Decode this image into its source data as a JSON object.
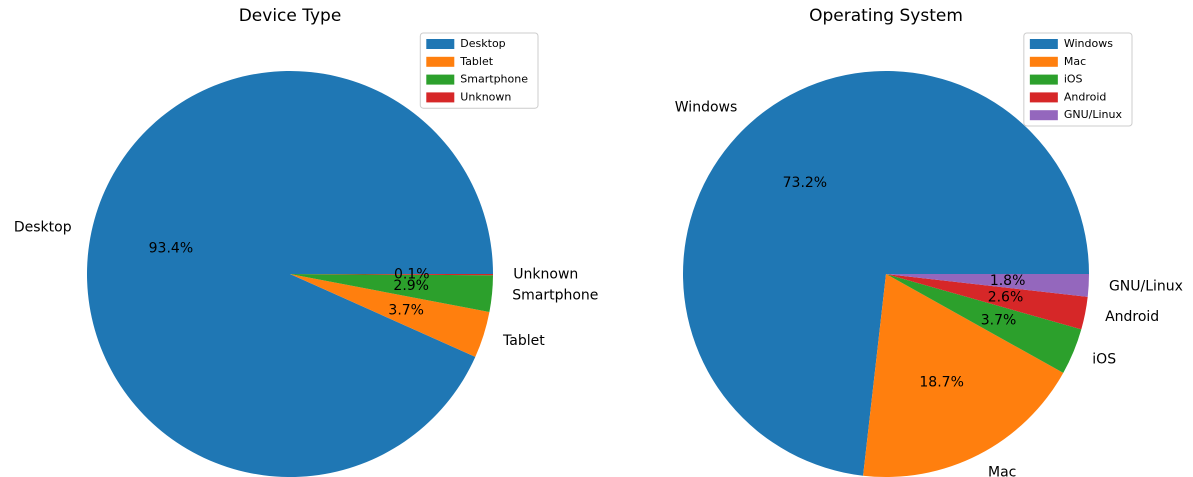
{
  "chart_data": [
    {
      "type": "pie",
      "title": "Device Type",
      "categories": [
        "Desktop",
        "Tablet",
        "Smartphone",
        "Unknown"
      ],
      "values": [
        93.4,
        3.7,
        2.9,
        0.1
      ],
      "value_labels": [
        "93.4%",
        "3.7%",
        "2.9%",
        "0.1%"
      ],
      "colors": [
        "#1f77b4",
        "#ff7f0e",
        "#2ca02c",
        "#d62728"
      ],
      "legend": "upper right"
    },
    {
      "type": "pie",
      "title": "Operating System",
      "categories": [
        "Windows",
        "Mac",
        "iOS",
        "Android",
        "GNU/Linux"
      ],
      "values": [
        73.2,
        18.7,
        3.7,
        2.6,
        1.8
      ],
      "value_labels": [
        "73.2%",
        "18.7%",
        "3.7%",
        "2.6%",
        "1.8%"
      ],
      "colors": [
        "#1f77b4",
        "#ff7f0e",
        "#2ca02c",
        "#d62728",
        "#9467bd"
      ],
      "legend": "upper right"
    }
  ]
}
